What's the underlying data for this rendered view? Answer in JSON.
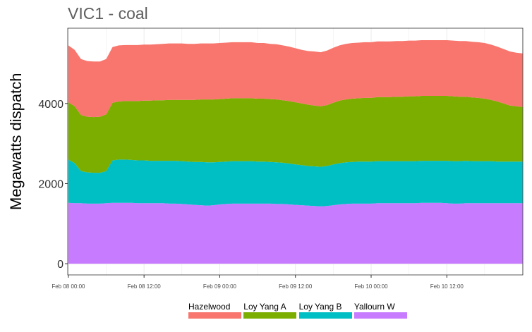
{
  "title": "VIC1 - coal",
  "chart_data": {
    "type": "area",
    "stacked": true,
    "title": "VIC1 - coal",
    "xlabel": "",
    "ylabel": "Megawatts dispatch",
    "ylim": [
      -280,
      5880
    ],
    "yticks": [
      0,
      2000,
      4000
    ],
    "xticks": [
      "Feb 08 00:00",
      "Feb 08 12:00",
      "Feb 09 00:00",
      "Feb 09 12:00",
      "Feb 10 00:00",
      "Feb 10 12:00"
    ],
    "x_range": [
      "Feb 08 00:00",
      "Feb 11 00:00"
    ],
    "x_step": "1 hour",
    "grid": true,
    "legend_placement": "bottom",
    "series": [
      {
        "name": "Hazelwood",
        "color": "#F8766D",
        "values": [
          1420,
          1410,
          1400,
          1390,
          1390,
          1380,
          1380,
          1390,
          1400,
          1400,
          1400,
          1400,
          1400,
          1400,
          1400,
          1410,
          1410,
          1410,
          1410,
          1400,
          1400,
          1400,
          1400,
          1400,
          1400,
          1400,
          1400,
          1400,
          1400,
          1400,
          1390,
          1390,
          1380,
          1380,
          1370,
          1360,
          1350,
          1340,
          1340,
          1350,
          1350,
          1360,
          1370,
          1380,
          1390,
          1390,
          1390,
          1390,
          1390,
          1390,
          1390,
          1390,
          1390,
          1390,
          1390,
          1390,
          1390,
          1390,
          1390,
          1390,
          1390,
          1390,
          1390,
          1390,
          1390,
          1390,
          1390,
          1380,
          1370,
          1360,
          1350,
          1340,
          1340
        ]
      },
      {
        "name": "Loy Yang A",
        "color": "#7CAE00",
        "values": [
          1430,
          1420,
          1400,
          1390,
          1390,
          1400,
          1420,
          1440,
          1450,
          1460,
          1470,
          1480,
          1490,
          1500,
          1510,
          1510,
          1520,
          1520,
          1530,
          1540,
          1550,
          1560,
          1570,
          1570,
          1570,
          1570,
          1570,
          1570,
          1570,
          1570,
          1570,
          1570,
          1570,
          1570,
          1560,
          1560,
          1550,
          1540,
          1530,
          1520,
          1510,
          1520,
          1540,
          1560,
          1570,
          1580,
          1580,
          1590,
          1590,
          1600,
          1600,
          1600,
          1610,
          1610,
          1620,
          1620,
          1620,
          1620,
          1620,
          1620,
          1620,
          1620,
          1610,
          1600,
          1590,
          1580,
          1560,
          1530,
          1500,
          1450,
          1400,
          1380,
          1360
        ]
      },
      {
        "name": "Loy Yang B",
        "color": "#00BFC4",
        "values": [
          1080,
          1000,
          800,
          780,
          770,
          770,
          800,
          1060,
          1080,
          1080,
          1070,
          1070,
          1070,
          1060,
          1060,
          1060,
          1070,
          1070,
          1070,
          1070,
          1070,
          1080,
          1080,
          1070,
          1060,
          1060,
          1060,
          1060,
          1060,
          1060,
          1050,
          1050,
          1040,
          1040,
          1030,
          1020,
          1010,
          1000,
          990,
          990,
          990,
          1000,
          1020,
          1030,
          1040,
          1040,
          1050,
          1050,
          1050,
          1050,
          1050,
          1050,
          1050,
          1050,
          1050,
          1050,
          1050,
          1050,
          1050,
          1050,
          1060,
          1060,
          1060,
          1060,
          1050,
          1050,
          1050,
          1050,
          1040,
          1040,
          1040,
          1040,
          1040
        ]
      },
      {
        "name": "Yallourn W",
        "color": "#C77CFF",
        "values": [
          1520,
          1510,
          1510,
          1500,
          1500,
          1500,
          1510,
          1520,
          1520,
          1520,
          1520,
          1510,
          1510,
          1510,
          1510,
          1510,
          1500,
          1500,
          1490,
          1480,
          1470,
          1460,
          1450,
          1460,
          1480,
          1490,
          1500,
          1500,
          1500,
          1500,
          1500,
          1500,
          1500,
          1490,
          1490,
          1480,
          1470,
          1460,
          1450,
          1440,
          1430,
          1440,
          1460,
          1480,
          1490,
          1500,
          1500,
          1500,
          1500,
          1510,
          1510,
          1510,
          1510,
          1510,
          1510,
          1510,
          1520,
          1520,
          1520,
          1520,
          1510,
          1500,
          1500,
          1510,
          1510,
          1510,
          1510,
          1510,
          1510,
          1510,
          1510,
          1510,
          1510
        ]
      }
    ]
  }
}
